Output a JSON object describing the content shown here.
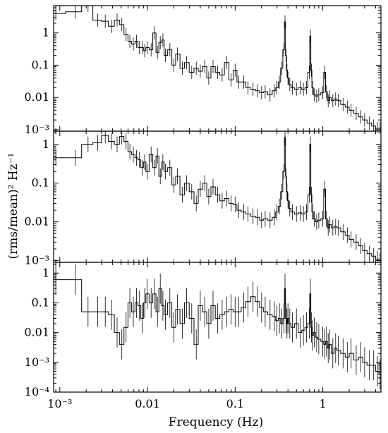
{
  "chart_data": {
    "type": "line",
    "xlabel": "Frequency (Hz)",
    "ylabel": "(rms/mean)² Hz⁻¹",
    "xscale": "log",
    "yscale": "log",
    "xlim": [
      0.00085,
      4.6
    ],
    "x_tick_labels": [
      "10⁻³",
      "0.01",
      "0.1",
      "1"
    ],
    "x_tick_values": [
      0.001,
      0.01,
      0.1,
      1
    ],
    "panels": [
      {
        "ylim": [
          0.0009,
          7
        ],
        "y_tick_labels": [
          "10⁻³",
          "0.01",
          "0.1",
          "1"
        ],
        "y_tick_values": [
          0.001,
          0.01,
          0.1,
          1
        ],
        "series": [
          {
            "x": [
              0.0009,
              0.0015,
              0.0021,
              0.0027,
              0.0033,
              0.0039,
              0.0045,
              0.0051,
              0.0057,
              0.0063,
              0.0069,
              0.0075,
              0.0081,
              0.0087,
              0.0093,
              0.0099,
              0.011,
              0.012,
              0.013,
              0.014,
              0.015,
              0.016,
              0.018,
              0.02,
              0.022,
              0.025,
              0.028,
              0.032,
              0.036,
              0.04,
              0.045,
              0.05,
              0.056,
              0.063,
              0.071,
              0.08,
              0.09,
              0.1,
              0.11,
              0.125,
              0.14,
              0.16,
              0.18,
              0.2,
              0.22,
              0.25,
              0.28,
              0.3,
              0.32,
              0.34,
              0.36,
              0.37,
              0.38,
              0.39,
              0.4,
              0.42,
              0.45,
              0.5,
              0.55,
              0.6,
              0.65,
              0.7,
              0.72,
              0.74,
              0.76,
              0.8,
              0.85,
              0.9,
              1.0,
              1.05,
              1.1,
              1.15,
              1.2,
              1.3,
              1.4,
              1.5,
              1.7,
              1.9,
              2.1,
              2.4,
              2.7,
              3.0,
              3.4,
              3.8,
              4.2,
              4.5
            ],
            "y": [
              4.0,
              4.5,
              7.0,
              2.5,
              2.3,
              1.6,
              2.5,
              1.8,
              0.9,
              0.55,
              0.45,
              0.55,
              0.35,
              0.35,
              0.28,
              0.35,
              0.3,
              1.0,
              0.25,
              0.5,
              0.6,
              0.2,
              0.3,
              0.1,
              0.22,
              0.08,
              0.12,
              0.06,
              0.08,
              0.065,
              0.09,
              0.04,
              0.09,
              0.06,
              0.05,
              0.12,
              0.035,
              0.07,
              0.03,
              0.03,
              0.02,
              0.018,
              0.016,
              0.014,
              0.015,
              0.012,
              0.016,
              0.02,
              0.03,
              0.08,
              0.3,
              2.2,
              0.2,
              0.07,
              0.04,
              0.025,
              0.02,
              0.018,
              0.02,
              0.018,
              0.02,
              0.06,
              0.8,
              0.07,
              0.02,
              0.012,
              0.011,
              0.012,
              0.014,
              0.06,
              0.015,
              0.008,
              0.01,
              0.008,
              0.009,
              0.008,
              0.006,
              0.005,
              0.004,
              0.0032,
              0.0025,
              0.002,
              0.0016,
              0.0013,
              0.0011,
              0.0011
            ]
          }
        ]
      },
      {
        "ylim": [
          0.0009,
          2.2
        ],
        "y_tick_labels": [
          "10⁻³",
          "0.01",
          "0.1",
          "1"
        ],
        "y_tick_values": [
          0.001,
          0.01,
          0.1,
          1
        ],
        "series": [
          {
            "x": [
              0.0009,
              0.0015,
              0.0021,
              0.0027,
              0.0033,
              0.0039,
              0.0045,
              0.0051,
              0.0057,
              0.0063,
              0.0069,
              0.0075,
              0.0081,
              0.0087,
              0.0093,
              0.0099,
              0.011,
              0.012,
              0.013,
              0.014,
              0.015,
              0.016,
              0.018,
              0.02,
              0.022,
              0.025,
              0.028,
              0.032,
              0.036,
              0.04,
              0.045,
              0.05,
              0.056,
              0.063,
              0.071,
              0.08,
              0.09,
              0.1,
              0.11,
              0.125,
              0.14,
              0.16,
              0.18,
              0.2,
              0.22,
              0.25,
              0.28,
              0.3,
              0.32,
              0.34,
              0.36,
              0.37,
              0.38,
              0.39,
              0.4,
              0.42,
              0.45,
              0.5,
              0.55,
              0.6,
              0.65,
              0.7,
              0.72,
              0.74,
              0.76,
              0.8,
              0.85,
              0.9,
              1.0,
              1.05,
              1.1,
              1.15,
              1.2,
              1.3,
              1.4,
              1.5,
              1.7,
              1.9,
              2.1,
              2.4,
              2.7,
              3.0,
              3.4,
              3.8,
              4.2,
              4.5
            ],
            "y": [
              0.45,
              0.45,
              1.0,
              1.1,
              1.7,
              1.2,
              1.0,
              1.6,
              1.2,
              0.65,
              0.55,
              0.45,
              0.4,
              0.25,
              0.35,
              0.2,
              0.55,
              0.25,
              0.5,
              0.15,
              0.35,
              0.2,
              0.25,
              0.09,
              0.15,
              0.05,
              0.1,
              0.06,
              0.03,
              0.07,
              0.1,
              0.045,
              0.08,
              0.05,
              0.035,
              0.04,
              0.03,
              0.028,
              0.02,
              0.018,
              0.016,
              0.014,
              0.013,
              0.011,
              0.012,
              0.011,
              0.013,
              0.018,
              0.025,
              0.06,
              0.2,
              1.5,
              0.15,
              0.06,
              0.035,
              0.022,
              0.018,
              0.016,
              0.017,
              0.016,
              0.018,
              0.05,
              1.0,
              0.05,
              0.018,
              0.012,
              0.01,
              0.011,
              0.012,
              0.07,
              0.012,
              0.007,
              0.0085,
              0.007,
              0.0075,
              0.007,
              0.0055,
              0.0045,
              0.0035,
              0.003,
              0.0024,
              0.0018,
              0.0015,
              0.0013,
              0.0011,
              0.001
            ]
          }
        ]
      },
      {
        "ylim": [
          0.0001,
          2.3
        ],
        "y_tick_labels": [
          "10⁻⁴",
          "10⁻³",
          "0.01",
          "0.1",
          "1"
        ],
        "y_tick_values": [
          0.0001,
          0.001,
          0.01,
          0.1,
          1
        ],
        "series": [
          {
            "x": [
              0.0009,
              0.0015,
              0.0021,
              0.0027,
              0.0033,
              0.0039,
              0.0045,
              0.0051,
              0.0057,
              0.0063,
              0.0069,
              0.0075,
              0.0081,
              0.0087,
              0.0093,
              0.0099,
              0.011,
              0.012,
              0.013,
              0.014,
              0.015,
              0.016,
              0.018,
              0.02,
              0.022,
              0.025,
              0.028,
              0.032,
              0.036,
              0.04,
              0.045,
              0.05,
              0.056,
              0.063,
              0.071,
              0.08,
              0.09,
              0.1,
              0.11,
              0.125,
              0.14,
              0.16,
              0.18,
              0.2,
              0.22,
              0.25,
              0.28,
              0.3,
              0.32,
              0.34,
              0.36,
              0.37,
              0.38,
              0.39,
              0.4,
              0.42,
              0.45,
              0.5,
              0.55,
              0.6,
              0.65,
              0.7,
              0.72,
              0.74,
              0.76,
              0.8,
              0.85,
              0.9,
              1.0,
              1.05,
              1.1,
              1.15,
              1.2,
              1.3,
              1.4,
              1.5,
              1.7,
              1.9,
              2.1,
              2.4,
              2.7,
              3.0,
              3.4,
              3.8,
              4.2,
              4.5
            ],
            "y": [
              0.6,
              0.6,
              0.05,
              0.05,
              0.05,
              0.04,
              0.01,
              0.004,
              0.015,
              0.1,
              0.05,
              0.1,
              0.08,
              0.03,
              0.1,
              0.2,
              0.1,
              0.2,
              0.05,
              0.3,
              0.08,
              0.04,
              0.1,
              0.015,
              0.06,
              0.02,
              0.1,
              0.03,
              0.004,
              0.08,
              0.05,
              0.02,
              0.08,
              0.03,
              0.04,
              0.05,
              0.06,
              0.05,
              0.05,
              0.07,
              0.11,
              0.16,
              0.11,
              0.07,
              0.05,
              0.04,
              0.035,
              0.025,
              0.03,
              0.02,
              0.03,
              0.3,
              0.03,
              0.02,
              0.03,
              0.02,
              0.015,
              0.02,
              0.01,
              0.012,
              0.015,
              0.02,
              0.2,
              0.015,
              0.008,
              0.01,
              0.007,
              0.006,
              0.005,
              0.004,
              0.005,
              0.003,
              0.004,
              0.002,
              0.003,
              0.0025,
              0.002,
              0.0015,
              0.002,
              0.0012,
              0.0015,
              0.001,
              0.0008,
              0.0008,
              0.0005,
              0.0004
            ]
          }
        ]
      }
    ]
  }
}
